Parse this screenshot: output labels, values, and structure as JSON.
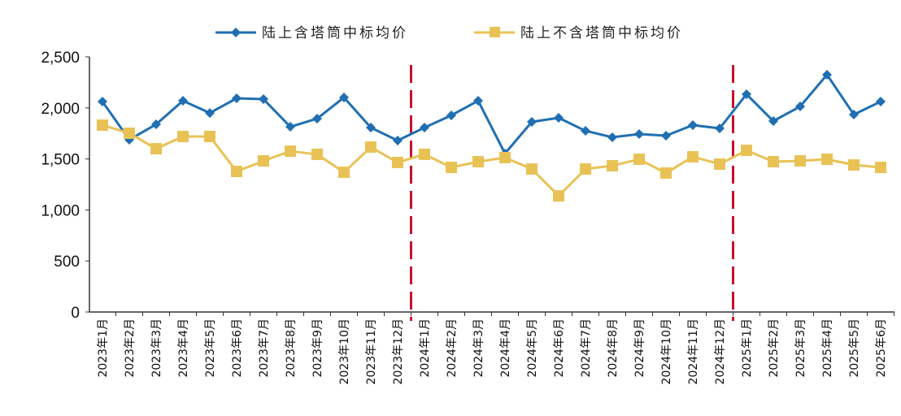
{
  "chart_data": {
    "type": "line",
    "title": "",
    "xlabel": "",
    "ylabel": "",
    "ylim": [
      0,
      2500
    ],
    "yticks": [
      "0",
      "500",
      "1,000",
      "1,500",
      "2,000",
      "2,500"
    ],
    "ytick_values": [
      0,
      500,
      1000,
      1500,
      2000,
      2500
    ],
    "grid": false,
    "legend_position": "top",
    "categories": [
      "2023年1月",
      "2023年2月",
      "2023年3月",
      "2023年4月",
      "2023年5月",
      "2023年6月",
      "2023年7月",
      "2023年8月",
      "2023年9月",
      "2023年10月",
      "2023年11月",
      "2023年12月",
      "2024年1月",
      "2024年2月",
      "2024年3月",
      "2024年4月",
      "2024年5月",
      "2024年6月",
      "2024年7月",
      "2024年8月",
      "2024年9月",
      "2024年10月",
      "2024年11月",
      "2024年12月",
      "2025年1月",
      "2025年2月",
      "2025年3月",
      "2025年4月",
      "2025年5月",
      "2025年6月"
    ],
    "series": [
      {
        "name": "陆上含塔筒中标均价",
        "color": "#1f6fb2",
        "marker": "diamond",
        "values": [
          2062,
          1688,
          1839,
          2070,
          1950,
          2094,
          2086,
          1815,
          1895,
          2102,
          1807,
          1680,
          1807,
          1927,
          2070,
          1553,
          1863,
          1903,
          1775,
          1712,
          1744,
          1728,
          1831,
          1799,
          2134,
          1871,
          2014,
          2325,
          1935,
          2062
        ]
      },
      {
        "name": "陆上不含塔筒中标均价",
        "color": "#e9c256",
        "marker": "square",
        "values": [
          1831,
          1752,
          1600,
          1720,
          1720,
          1377,
          1481,
          1576,
          1545,
          1369,
          1616,
          1465,
          1545,
          1417,
          1473,
          1513,
          1401,
          1138,
          1401,
          1433,
          1497,
          1361,
          1521,
          1449,
          1584,
          1473,
          1481,
          1497,
          1441,
          1417
        ]
      }
    ],
    "vertical_dividers": {
      "color": "#c8102e",
      "style": "dashed",
      "between": [
        [
          "2023年12月",
          "2024年1月"
        ],
        [
          "2024年12月",
          "2025年1月"
        ]
      ]
    }
  }
}
